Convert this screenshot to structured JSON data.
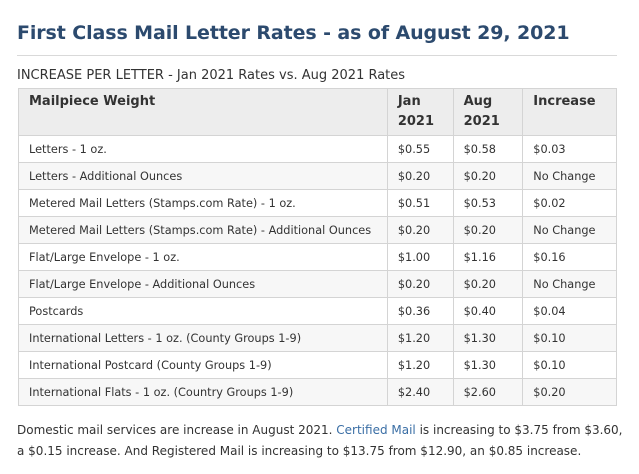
{
  "page": {
    "title": "First Class Mail Letter Rates - as of August 29, 2021",
    "caption": "INCREASE PER LETTER - Jan 2021 Rates vs. Aug 2021 Rates"
  },
  "table": {
    "headers": {
      "weight": "Mailpiece Weight",
      "jan_line1": "Jan",
      "jan_line2": "2021",
      "aug_line1": "Aug",
      "aug_line2": "2021",
      "increase": "Increase"
    },
    "rows": [
      {
        "weight": "Letters - 1 oz.",
        "jan": "$0.55",
        "aug": "$0.58",
        "increase": "$0.03"
      },
      {
        "weight": "Letters - Additional Ounces",
        "jan": "$0.20",
        "aug": "$0.20",
        "increase": "No Change"
      },
      {
        "weight": "Metered Mail Letters (Stamps.com Rate) - 1 oz.",
        "jan": "$0.51",
        "aug": "$0.53",
        "increase": "$0.02"
      },
      {
        "weight": "Metered Mail Letters (Stamps.com Rate) - Additional Ounces",
        "jan": "$0.20",
        "aug": "$0.20",
        "increase": "No Change"
      },
      {
        "weight": "Flat/Large Envelope - 1 oz.",
        "jan": "$1.00",
        "aug": "$1.16",
        "increase": "$0.16"
      },
      {
        "weight": "Flat/Large Envelope - Additional Ounces",
        "jan": "$0.20",
        "aug": "$0.20",
        "increase": "No Change"
      },
      {
        "weight": "Postcards",
        "jan": "$0.36",
        "aug": "$0.40",
        "increase": "$0.04"
      },
      {
        "weight": "International Letters - 1 oz. (County Groups 1-9)",
        "jan": "$1.20",
        "aug": "$1.30",
        "increase": "$0.10"
      },
      {
        "weight": "International Postcard (County Groups 1-9)",
        "jan": "$1.20",
        "aug": "$1.30",
        "increase": "$0.10"
      },
      {
        "weight": "International Flats - 1 oz. (Country Groups 1-9)",
        "jan": "$2.40",
        "aug": "$2.60",
        "increase": "$0.20"
      }
    ]
  },
  "footnote": {
    "part1": "Domestic mail services are increase in August 2021. ",
    "link": "Certified Mail",
    "part2": " is increasing to $3.75 from $3.60, a $0.15 increase. And Registered Mail is increasing to $13.75 from $12.90, an $0.85 increase."
  },
  "colors": {
    "title": "#2c4a6e",
    "link": "#3a6ea5",
    "header_bg": "#ededed"
  }
}
